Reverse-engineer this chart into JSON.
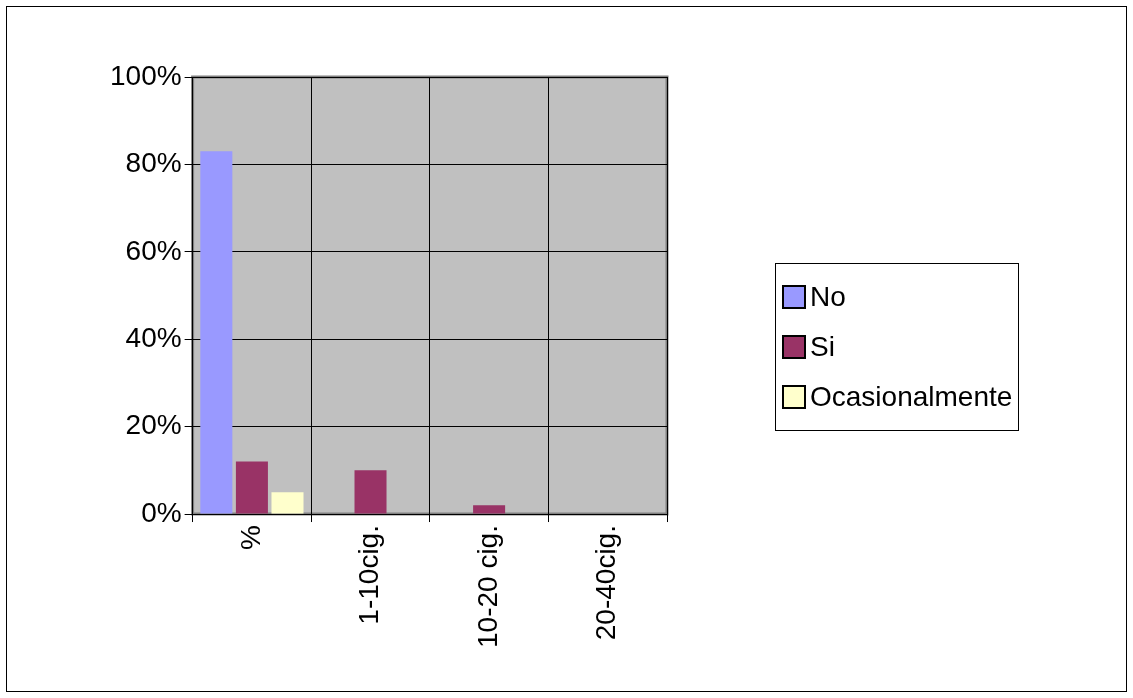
{
  "chart_data": {
    "type": "bar",
    "categories": [
      "%",
      "1-10cig.",
      "10-20 cig.",
      "20-40cig."
    ],
    "series": [
      {
        "name": "No",
        "color": "#9999ff",
        "values": [
          83,
          0,
          0,
          0
        ]
      },
      {
        "name": "Si",
        "color": "#993366",
        "values": [
          12,
          10,
          2,
          0
        ]
      },
      {
        "name": "Ocasionalmente",
        "color": "#ffffcc",
        "values": [
          5,
          0,
          0,
          0
        ]
      }
    ],
    "ylim": [
      0,
      100
    ],
    "yticks": [
      {
        "value": 0,
        "label": "0%"
      },
      {
        "value": 20,
        "label": "20%"
      },
      {
        "value": 40,
        "label": "40%"
      },
      {
        "value": 60,
        "label": "60%"
      },
      {
        "value": 80,
        "label": "80%"
      },
      {
        "value": 100,
        "label": "100%"
      }
    ],
    "grid": true,
    "legend": "right"
  }
}
